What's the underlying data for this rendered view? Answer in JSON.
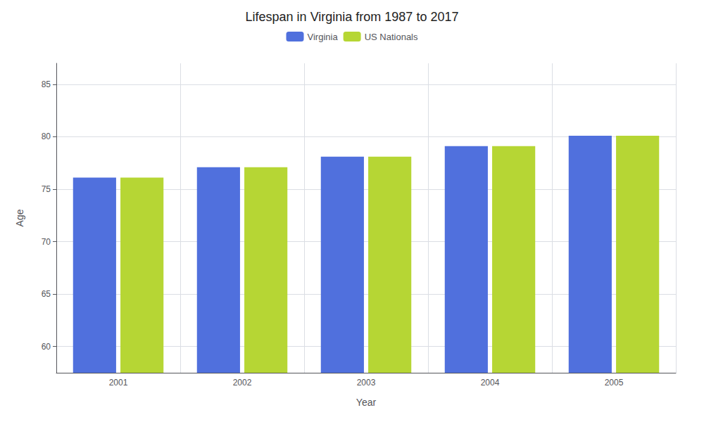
{
  "chart_data": {
    "type": "bar",
    "title": "Lifespan in Virginia from 1987 to 2017",
    "xlabel": "Year",
    "ylabel": "Age",
    "categories": [
      "2001",
      "2002",
      "2003",
      "2004",
      "2005"
    ],
    "series": [
      {
        "name": "Virginia",
        "values": [
          76.1,
          77.1,
          78.1,
          79.1,
          80.1
        ]
      },
      {
        "name": "US Nationals",
        "values": [
          76.1,
          77.1,
          78.1,
          79.1,
          80.1
        ]
      }
    ],
    "ylim": [
      57.5,
      87
    ],
    "yticks": [
      60,
      65,
      70,
      75,
      80,
      85
    ],
    "grid": true,
    "legend": "top"
  }
}
